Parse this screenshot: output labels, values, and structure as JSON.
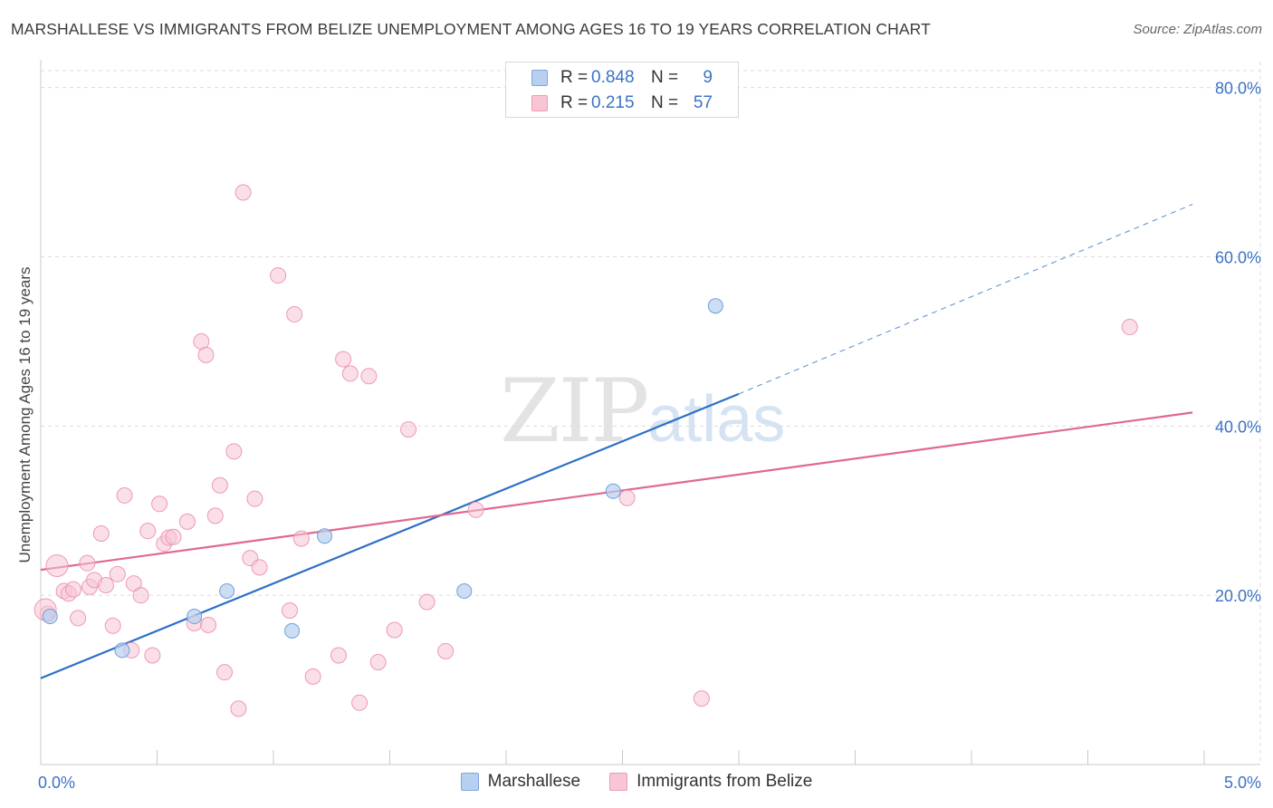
{
  "header": {
    "title": "MARSHALLESE VS IMMIGRANTS FROM BELIZE UNEMPLOYMENT AMONG AGES 16 TO 19 YEARS CORRELATION CHART",
    "source": "Source: ZipAtlas.com"
  },
  "watermark": {
    "zip": "ZIP",
    "atlas": "atlas"
  },
  "legend": {
    "rows": [
      {
        "r_label": "R =",
        "r_value": "0.848",
        "n_label": "N =",
        "n_value": "9",
        "color": "#b8d0f0",
        "border": "#7da6dc"
      },
      {
        "r_label": "R =",
        "r_value": "0.215",
        "n_label": "N =",
        "n_value": "57",
        "color": "#f8c5d5",
        "border": "#ee9ab5"
      }
    ]
  },
  "bottom_legend": [
    "Marshallese",
    "Immigrants from Belize"
  ],
  "colors": {
    "blue_fill": "#b8d0f0",
    "blue_stroke": "#6f9fd8",
    "blue_line": "#2d6fc8",
    "pink_fill": "#f8c5d5",
    "pink_stroke": "#ec99b4",
    "pink_line": "#e0688f",
    "tick_text": "#3b73c4",
    "grid": "#dcdcdc"
  },
  "chart_data": {
    "type": "scatter",
    "title": "MARSHALLESE VS IMMIGRANTS FROM BELIZE UNEMPLOYMENT AMONG AGES 16 TO 19 YEARS CORRELATION CHART",
    "xlabel": "",
    "ylabel": "Unemployment Among Ages 16 to 19 years",
    "xlim": [
      0,
      5
    ],
    "ylim": [
      0,
      82
    ],
    "x_tick_labels": [
      {
        "value": 0,
        "label": "0.0%"
      },
      {
        "value": 5,
        "label": "5.0%"
      }
    ],
    "y_tick_labels": [
      {
        "value": 20,
        "label": "20.0%"
      },
      {
        "value": 40,
        "label": "40.0%"
      },
      {
        "value": 60,
        "label": "60.0%"
      },
      {
        "value": 80,
        "label": "80.0%"
      }
    ],
    "grid": true,
    "legend_position": "top-center",
    "series": [
      {
        "name": "Marshallese",
        "color": "#b8d0f0",
        "points": [
          {
            "x": 0.04,
            "y": 17.5
          },
          {
            "x": 0.35,
            "y": 13.5
          },
          {
            "x": 0.66,
            "y": 17.5
          },
          {
            "x": 0.8,
            "y": 20.5
          },
          {
            "x": 1.08,
            "y": 15.8
          },
          {
            "x": 1.22,
            "y": 27.0
          },
          {
            "x": 1.82,
            "y": 20.5
          },
          {
            "x": 2.46,
            "y": 32.3
          },
          {
            "x": 2.9,
            "y": 54.2
          }
        ],
        "trend": {
          "x0": 0.0,
          "y0": 10.2,
          "x1": 3.0,
          "y1": 43.8,
          "x_dash_end": 4.95,
          "y_dash_end": 66.2
        }
      },
      {
        "name": "Immigrants from Belize",
        "color": "#f8c5d5",
        "points": [
          {
            "x": 0.03,
            "y": 17.8
          },
          {
            "x": 0.07,
            "y": 23.5
          },
          {
            "x": 0.1,
            "y": 20.5
          },
          {
            "x": 0.12,
            "y": 20.2
          },
          {
            "x": 0.14,
            "y": 20.7
          },
          {
            "x": 0.16,
            "y": 17.3
          },
          {
            "x": 0.2,
            "y": 23.8
          },
          {
            "x": 0.21,
            "y": 21.0
          },
          {
            "x": 0.23,
            "y": 21.8
          },
          {
            "x": 0.26,
            "y": 27.3
          },
          {
            "x": 0.28,
            "y": 21.2
          },
          {
            "x": 0.31,
            "y": 16.4
          },
          {
            "x": 0.33,
            "y": 22.5
          },
          {
            "x": 0.36,
            "y": 31.8
          },
          {
            "x": 0.39,
            "y": 13.5
          },
          {
            "x": 0.4,
            "y": 21.4
          },
          {
            "x": 0.43,
            "y": 20.0
          },
          {
            "x": 0.46,
            "y": 27.6
          },
          {
            "x": 0.48,
            "y": 12.9
          },
          {
            "x": 0.51,
            "y": 30.8
          },
          {
            "x": 0.53,
            "y": 26.1
          },
          {
            "x": 0.55,
            "y": 26.8
          },
          {
            "x": 0.57,
            "y": 26.9
          },
          {
            "x": 0.63,
            "y": 28.7
          },
          {
            "x": 0.66,
            "y": 16.7
          },
          {
            "x": 0.69,
            "y": 50.0
          },
          {
            "x": 0.71,
            "y": 48.4
          },
          {
            "x": 0.72,
            "y": 16.5
          },
          {
            "x": 0.75,
            "y": 29.4
          },
          {
            "x": 0.77,
            "y": 33.0
          },
          {
            "x": 0.79,
            "y": 10.9
          },
          {
            "x": 0.83,
            "y": 37.0
          },
          {
            "x": 0.85,
            "y": 6.6
          },
          {
            "x": 0.87,
            "y": 67.6
          },
          {
            "x": 0.9,
            "y": 24.4
          },
          {
            "x": 0.92,
            "y": 31.4
          },
          {
            "x": 0.94,
            "y": 23.3
          },
          {
            "x": 1.02,
            "y": 57.8
          },
          {
            "x": 1.07,
            "y": 18.2
          },
          {
            "x": 1.09,
            "y": 53.2
          },
          {
            "x": 1.12,
            "y": 26.7
          },
          {
            "x": 1.17,
            "y": 10.4
          },
          {
            "x": 1.28,
            "y": 12.9
          },
          {
            "x": 1.3,
            "y": 47.9
          },
          {
            "x": 1.33,
            "y": 46.2
          },
          {
            "x": 1.37,
            "y": 7.3
          },
          {
            "x": 1.41,
            "y": 45.9
          },
          {
            "x": 1.45,
            "y": 12.1
          },
          {
            "x": 1.52,
            "y": 15.9
          },
          {
            "x": 1.58,
            "y": 39.6
          },
          {
            "x": 1.66,
            "y": 19.2
          },
          {
            "x": 1.74,
            "y": 13.4
          },
          {
            "x": 1.87,
            "y": 30.1
          },
          {
            "x": 2.52,
            "y": 31.5
          },
          {
            "x": 2.84,
            "y": 7.8
          },
          {
            "x": 4.68,
            "y": 51.7
          },
          {
            "x": 0.02,
            "y": 18.3
          }
        ],
        "trend": {
          "x0": 0.0,
          "y0": 23.0,
          "x1": 4.95,
          "y1": 41.6
        }
      }
    ]
  }
}
